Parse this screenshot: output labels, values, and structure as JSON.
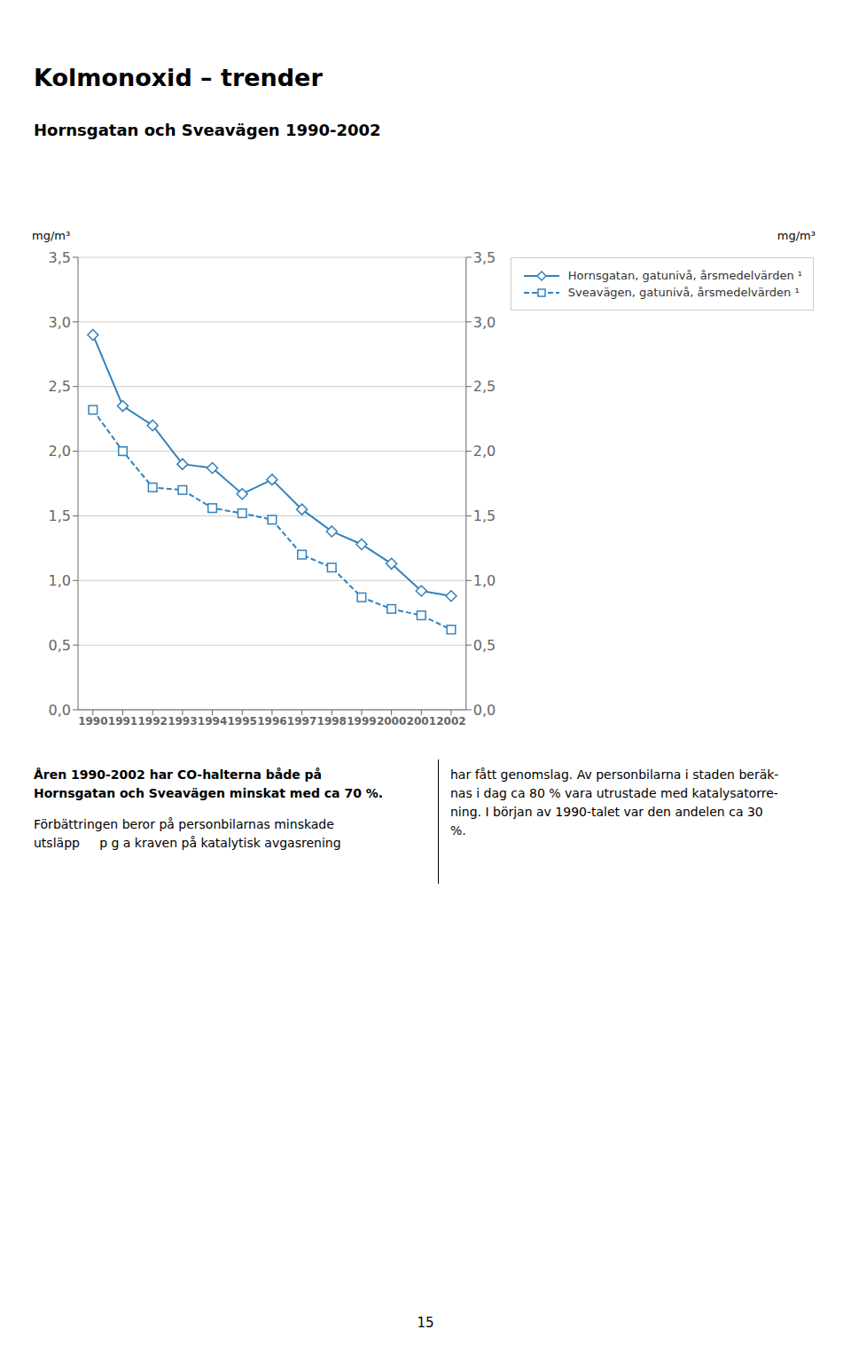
{
  "chart_data": {
    "type": "line",
    "title": "Kolmonoxid – trender",
    "subtitle": "Hornsgatan och Sveavägen 1990-2002",
    "ylabel": "mg/m³",
    "y2label": "mg/m³",
    "x": [
      1990,
      1991,
      1992,
      1993,
      1994,
      1995,
      1996,
      1997,
      1998,
      1999,
      2000,
      2001,
      2002
    ],
    "xlim": [
      1989.5,
      2002.5
    ],
    "xticks": [
      1990,
      1991,
      1992,
      1993,
      1994,
      1995,
      1996,
      1997,
      1998,
      1999,
      2000,
      2001,
      2002
    ],
    "ylim": [
      0.0,
      3.5
    ],
    "yticks": [
      {
        "value": 0.0,
        "label": "0,0"
      },
      {
        "value": 0.5,
        "label": "0,5"
      },
      {
        "value": 1.0,
        "label": "1,0"
      },
      {
        "value": 1.5,
        "label": "1,5"
      },
      {
        "value": 2.0,
        "label": "2,0"
      },
      {
        "value": 2.5,
        "label": "2,5"
      },
      {
        "value": 3.0,
        "label": "3,0"
      },
      {
        "value": 3.5,
        "label": "3,5"
      }
    ],
    "y2lim": [
      0.0,
      3.5
    ],
    "y2ticks": [
      {
        "value": 0.0,
        "label": "0,0"
      },
      {
        "value": 0.5,
        "label": "0,5"
      },
      {
        "value": 1.0,
        "label": "1,0"
      },
      {
        "value": 1.5,
        "label": "1,5"
      },
      {
        "value": 2.0,
        "label": "2,0"
      },
      {
        "value": 2.5,
        "label": "2,5"
      },
      {
        "value": 3.0,
        "label": "3,0"
      },
      {
        "value": 3.5,
        "label": "3,5"
      }
    ],
    "grid": true,
    "legend": "upper right",
    "series": [
      {
        "name": "Hornsgatan, gatunivå, årsmedelvärden ¹",
        "values": [
          2.9,
          2.35,
          2.2,
          1.9,
          1.87,
          1.67,
          1.78,
          1.55,
          1.38,
          1.28,
          1.13,
          0.92,
          0.88
        ],
        "marker": "diamond",
        "line_style": "solid"
      },
      {
        "name": "Sveavägen, gatunivå, årsmedelvärden ¹",
        "values": [
          2.32,
          2.0,
          1.72,
          1.7,
          1.56,
          1.52,
          1.47,
          1.2,
          1.1,
          0.87,
          0.78,
          0.73,
          0.62
        ],
        "marker": "square",
        "line_style": "dashed"
      }
    ],
    "text_left_bold": [
      "Åren 1990-2002 har CO-halterna både på",
      "Hornsgatan och Sveavägen minskat med ca 70 %."
    ],
    "text_left": [
      "Förbättringen beror på personbilarnas minskade",
      "utsläpp     p g a kraven på katalytisk avgasrening"
    ],
    "text_right": [
      "har fått genomslag. Av personbilarna i staden beräk-",
      "nas i dag ca 80 % vara utrustade med katalysatorre-",
      "ning. I början av 1990-talet var den andelen ca 30",
      "%."
    ],
    "page_number": "15"
  }
}
